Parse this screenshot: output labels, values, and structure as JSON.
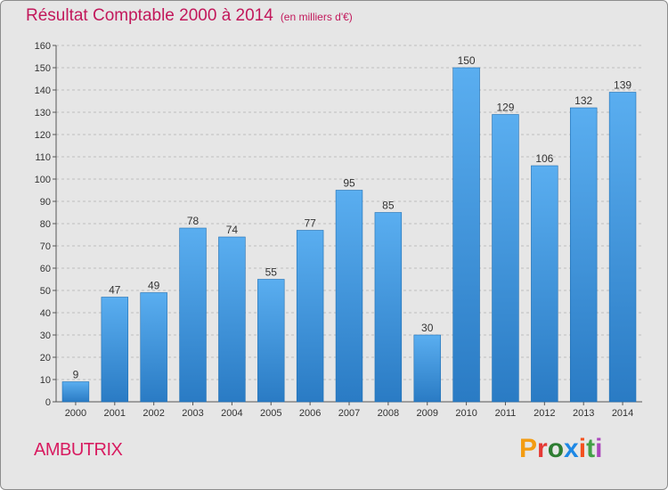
{
  "header": {
    "title": "Résultat Comptable 2000 à 2014",
    "subtitle": "(en milliers d'€)"
  },
  "footer": {
    "commune": "AMBUTRIX",
    "logo_letters": [
      "P",
      "r",
      "o",
      "x",
      "i",
      "t",
      "i"
    ],
    "logo_colors": [
      "#f39c12",
      "#e53935",
      "#2e7d32",
      "#1e88e5",
      "#f4511e",
      "#43a047",
      "#ab47bc"
    ]
  },
  "colors": {
    "bar_top": "#5aaef0",
    "bar_bottom": "#2a7bc4",
    "bar_edge": "#1f6fb3",
    "grid": "#bdbdbd",
    "background": "#e6e6e6"
  },
  "chart_data": {
    "type": "bar",
    "title": "Résultat Comptable 2000 à 2014",
    "xlabel": "",
    "ylabel": "",
    "ylim": [
      0,
      160
    ],
    "yticks": [
      0,
      10,
      20,
      30,
      40,
      50,
      60,
      70,
      80,
      90,
      100,
      110,
      120,
      130,
      140,
      150,
      160
    ],
    "categories": [
      "2000",
      "2001",
      "2002",
      "2003",
      "2004",
      "2005",
      "2006",
      "2007",
      "2008",
      "2009",
      "2010",
      "2011",
      "2012",
      "2013",
      "2014"
    ],
    "values": [
      9,
      47,
      49,
      78,
      74,
      55,
      77,
      95,
      85,
      30,
      150,
      129,
      106,
      132,
      139
    ],
    "grid": true
  }
}
